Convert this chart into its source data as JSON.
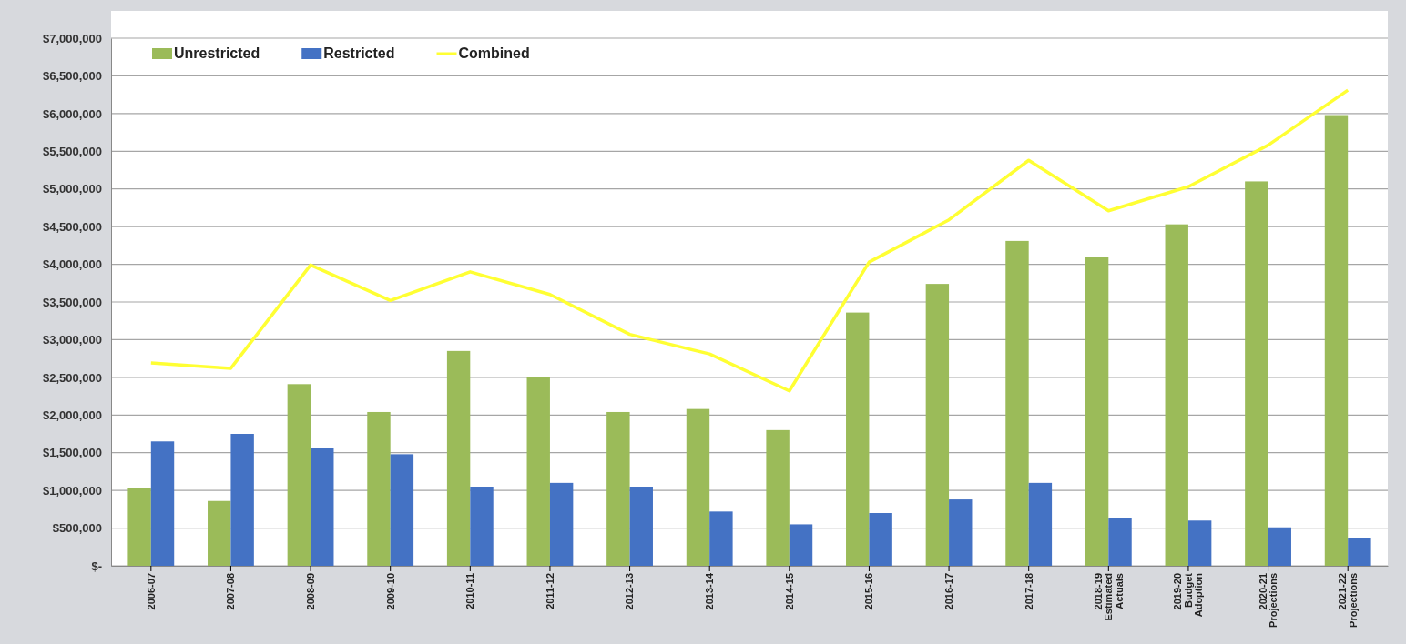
{
  "chart_data": {
    "type": "bar",
    "categories": [
      "2006-07",
      "2007-08",
      "2008-09",
      "2009-10",
      "2010-11",
      "2011-12",
      "2012-13",
      "2013-14",
      "2014-15",
      "2015-16",
      "2016-17",
      "2017-18",
      "2018-19\nEstimated\nActuals",
      "2019-20\nBudget\nAdoption",
      "2020-21\nProjections",
      "2021-22\nProjections"
    ],
    "series": [
      {
        "name": "Unrestricted",
        "color": "#9bbb59",
        "values": [
          1030000,
          860000,
          2410000,
          2040000,
          2850000,
          2510000,
          2040000,
          2080000,
          1800000,
          3360000,
          3740000,
          4310000,
          4100000,
          4530000,
          5100000,
          5980000
        ]
      },
      {
        "name": "Restricted",
        "color": "#4472c4",
        "values": [
          1650000,
          1750000,
          1560000,
          1480000,
          1050000,
          1100000,
          1050000,
          720000,
          550000,
          700000,
          880000,
          1100000,
          630000,
          600000,
          510000,
          370000
        ]
      },
      {
        "name": "Combined",
        "type": "line",
        "color": "#ffff33",
        "values": [
          2690000,
          2620000,
          3990000,
          3520000,
          3900000,
          3600000,
          3070000,
          2810000,
          2320000,
          4030000,
          4590000,
          5380000,
          4710000,
          5030000,
          5580000,
          6310000
        ]
      }
    ],
    "ylim": [
      0,
      7000000
    ],
    "yticks": [
      {
        "value": 0,
        "label": "$-"
      },
      {
        "value": 500000,
        "label": "$500,000"
      },
      {
        "value": 1000000,
        "label": "$1,000,000"
      },
      {
        "value": 1500000,
        "label": "$1,500,000"
      },
      {
        "value": 2000000,
        "label": "$2,000,000"
      },
      {
        "value": 2500000,
        "label": "$2,500,000"
      },
      {
        "value": 3000000,
        "label": "$3,000,000"
      },
      {
        "value": 3500000,
        "label": "$3,500,000"
      },
      {
        "value": 4000000,
        "label": "$4,000,000"
      },
      {
        "value": 4500000,
        "label": "$4,500,000"
      },
      {
        "value": 5000000,
        "label": "$5,000,000"
      },
      {
        "value": 5500000,
        "label": "$5,500,000"
      },
      {
        "value": 6000000,
        "label": "$6,000,000"
      },
      {
        "value": 6500000,
        "label": "$6,500,000"
      },
      {
        "value": 7000000,
        "label": "$7,000,000"
      }
    ],
    "grid": "y",
    "legend": "top left",
    "line_style": "solid",
    "marker": "none"
  }
}
